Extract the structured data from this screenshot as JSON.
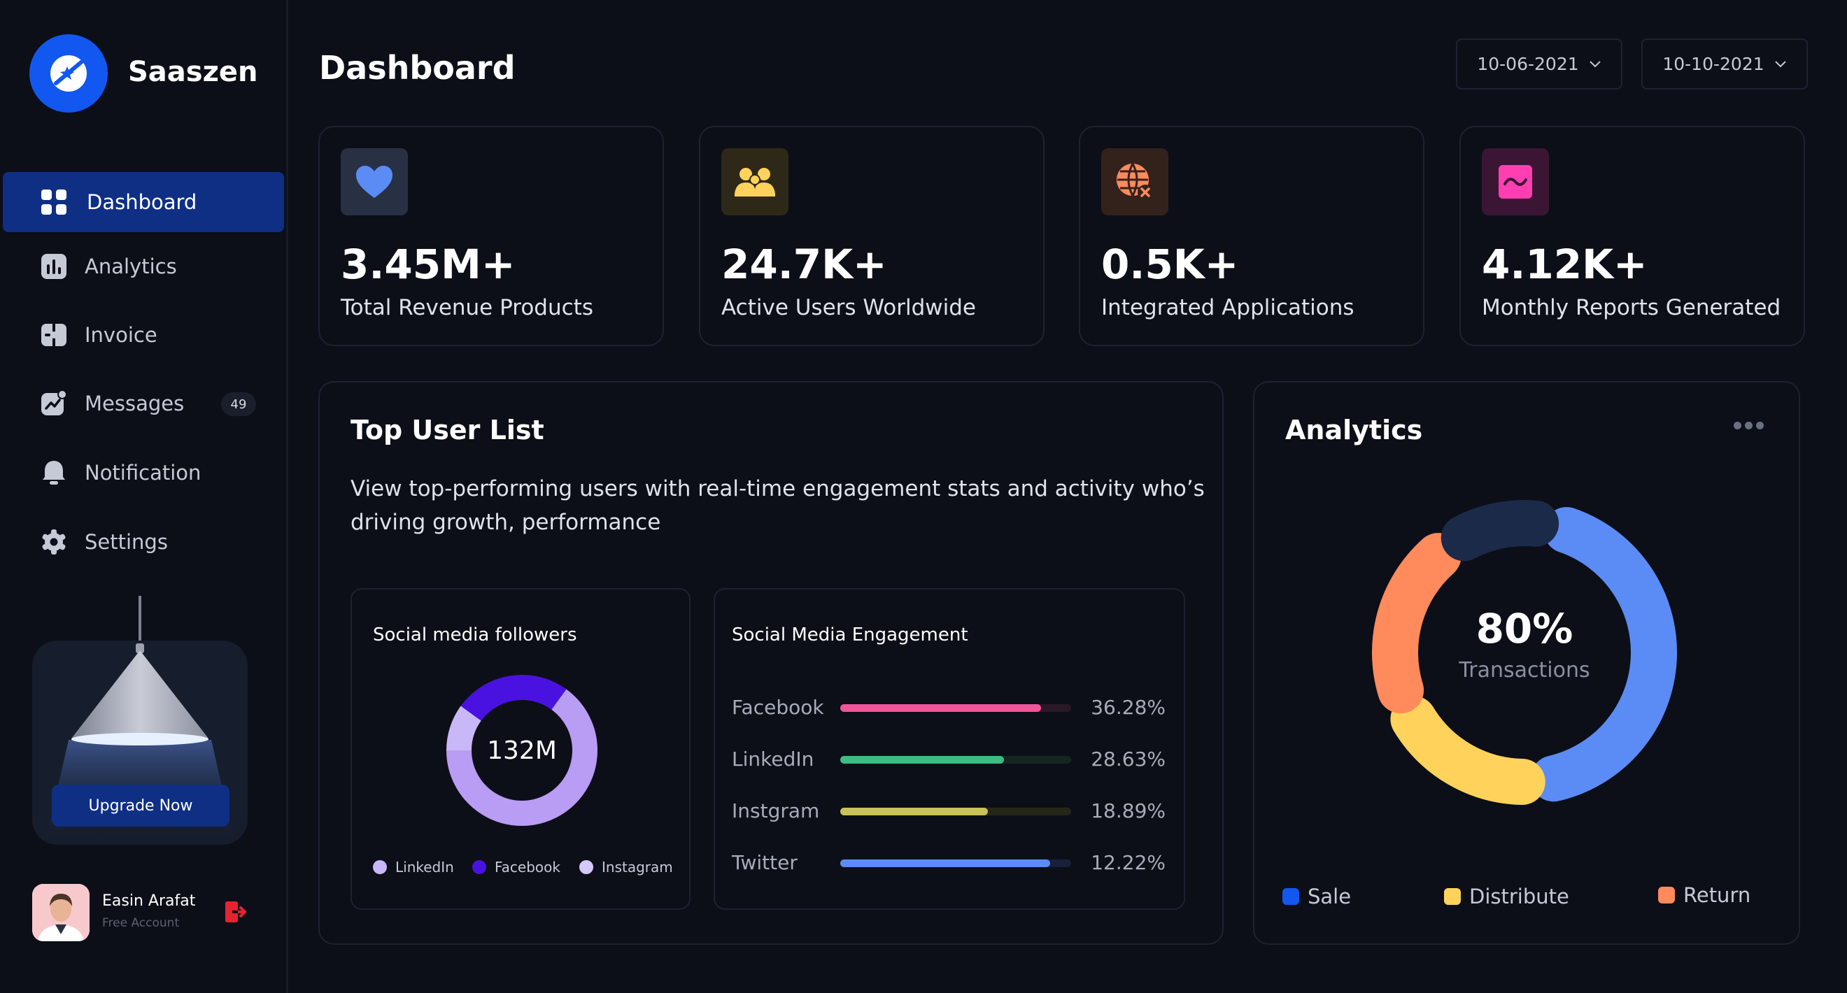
{
  "app": {
    "name": "Saaszen"
  },
  "sidebar": {
    "items": [
      {
        "label": "Dashboard",
        "icon": "grid-icon"
      },
      {
        "label": "Analytics",
        "icon": "bar-chart-icon"
      },
      {
        "label": "Invoice",
        "icon": "invoice-icon"
      },
      {
        "label": "Messages",
        "icon": "trend-chat-icon",
        "badge": "49"
      },
      {
        "label": "Notification",
        "icon": "bell-icon"
      },
      {
        "label": "Settings",
        "icon": "gear-icon"
      }
    ],
    "upgrade": {
      "button_label": "Upgrade Now"
    },
    "user": {
      "name": "Easin Arafat",
      "subtitle": "Free Account"
    }
  },
  "header": {
    "title": "Dashboard",
    "date_from": "10-06-2021",
    "date_to": "10-10-2021"
  },
  "stats": [
    {
      "value": "3.45M+",
      "label": "Total Revenue Products",
      "icon": "heart-icon",
      "color": "#5b8cf5"
    },
    {
      "value": "24.7K+",
      "label": "Active Users Worldwide",
      "icon": "users-icon",
      "color": "#ffd25c"
    },
    {
      "value": "0.5K+",
      "label": "Integrated Applications",
      "icon": "globe-x-icon",
      "color": "#ff8a5c"
    },
    {
      "value": "4.12K+",
      "label": "Monthly Reports Generated",
      "icon": "wave-icon",
      "color": "#ff3fb1"
    }
  ],
  "top_users": {
    "title": "Top User List",
    "description": "View top-performing users with real-time engagement stats and activity who’s driving growth, performance",
    "followers": {
      "title": "Social media followers",
      "center_value": "132M",
      "legend": [
        "LinkedIn",
        "Facebook",
        "Instagram"
      ]
    },
    "engagement": {
      "title": "Social Media Engagement",
      "rows": [
        {
          "label": "Facebook",
          "pct": "36.28%",
          "fill": 0.87,
          "color": "#f0559a",
          "track": "#2a1826"
        },
        {
          "label": "LinkedIn",
          "pct": "28.63%",
          "fill": 0.71,
          "color": "#3dbd83",
          "track": "#152620"
        },
        {
          "label": "Instgram",
          "pct": "18.89%",
          "fill": 0.64,
          "color": "#c9c15a",
          "track": "#262618"
        },
        {
          "label": "Twitter",
          "pct": "12.22%",
          "fill": 0.91,
          "color": "#5b8cf5",
          "track": "#18203a"
        }
      ]
    }
  },
  "analytics": {
    "title": "Analytics",
    "center_value": "80%",
    "center_label": "Transactions",
    "legend": [
      {
        "label": "Sale",
        "color": "#1257f0"
      },
      {
        "label": "Distribute",
        "color": "#ffd25c"
      },
      {
        "label": "Return",
        "color": "#ff8a5c"
      }
    ]
  },
  "chart_data": [
    {
      "type": "pie",
      "title": "Social media followers",
      "center_label": "132M",
      "categories": [
        "LinkedIn",
        "Facebook",
        "Instagram"
      ],
      "values": [
        10,
        25,
        65
      ],
      "colors": [
        "#c9b8f8",
        "#4a12e0",
        "#b99cf3"
      ]
    },
    {
      "type": "bar",
      "title": "Social Media Engagement",
      "categories": [
        "Facebook",
        "LinkedIn",
        "Instgram",
        "Twitter"
      ],
      "values": [
        36.28,
        28.63,
        18.89,
        12.22
      ]
    },
    {
      "type": "pie",
      "title": "Analytics",
      "center_label": "80% Transactions",
      "categories": [
        "Sale",
        "Distribute",
        "Return",
        "Other"
      ],
      "values": [
        45,
        20,
        22,
        13
      ],
      "colors": [
        "#5b8cf5",
        "#ffd25c",
        "#ff8a5c",
        "#1c2a4a"
      ]
    }
  ]
}
